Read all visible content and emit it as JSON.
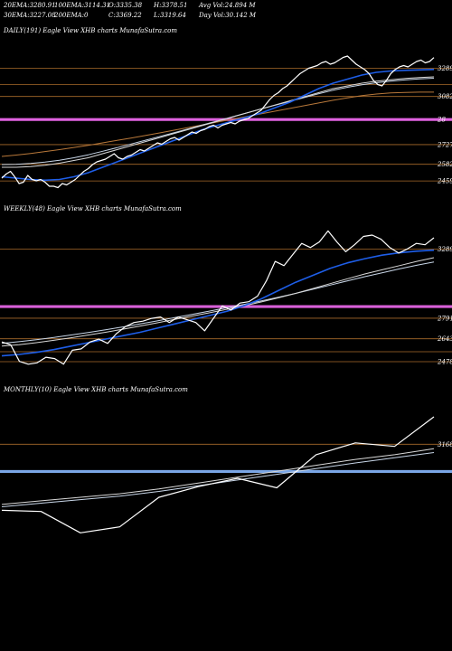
{
  "header": {
    "row1": [
      {
        "label": "20EMA:",
        "value": "3280.91"
      },
      {
        "label": "100EMA:",
        "value": "3114.31"
      },
      {
        "label": "O:",
        "value": "3335.38"
      },
      {
        "label": "H:",
        "value": "3378.51"
      },
      {
        "label": "Avg Vol:",
        "value": "24.894  M"
      }
    ],
    "row2": [
      {
        "label": "30EMA:",
        "value": "3227.08"
      },
      {
        "label": "200EMA:",
        "value": "0"
      },
      {
        "label": "C:",
        "value": "3369.22"
      },
      {
        "label": "L:",
        "value": "3319.64"
      },
      {
        "label": "Day Vol:",
        "value": "30.142  M"
      }
    ]
  },
  "colors": {
    "background": "#000000",
    "price": "#ffffff",
    "ema_fast": "#1e5ee8",
    "ema_slow": "#d8d8d8",
    "ema_alt": "#c8d6e8",
    "long_ma": "#b8783a",
    "level_line": "#a86a2a",
    "daily_band": "#e062e0",
    "weekly_band": "#d860d8",
    "monthly_band": "#7aa6e6"
  },
  "chart_data": [
    {
      "type": "line",
      "title": "DAILY(191) Eagle  View  XHB charts MunafaSutra.com",
      "ylim": [
        2380,
        3500
      ],
      "levels": [
        3289,
        3082,
        2727,
        2582,
        2459
      ],
      "level_labels": [
        "3289",
        "3082",
        "2727",
        "2582",
        "2459"
      ],
      "band": {
        "value": 2912,
        "label": "28"
      },
      "extra_levels": [
        3170
      ],
      "series": [
        {
          "key": "price",
          "color_key": "price",
          "width": 1.2,
          "values": [
            2480,
            2510,
            2530,
            2490,
            2440,
            2450,
            2500,
            2470,
            2460,
            2470,
            2450,
            2420,
            2420,
            2410,
            2440,
            2430,
            2450,
            2470,
            2500,
            2530,
            2550,
            2580,
            2600,
            2610,
            2620,
            2640,
            2660,
            2630,
            2620,
            2640,
            2650,
            2670,
            2690,
            2680,
            2700,
            2720,
            2740,
            2730,
            2750,
            2770,
            2780,
            2760,
            2780,
            2800,
            2820,
            2810,
            2830,
            2840,
            2860,
            2870,
            2850,
            2870,
            2880,
            2890,
            2880,
            2900,
            2910,
            2920,
            2940,
            2960,
            2980,
            3020,
            3060,
            3090,
            3110,
            3140,
            3160,
            3190,
            3220,
            3250,
            3270,
            3290,
            3300,
            3310,
            3330,
            3340,
            3320,
            3330,
            3350,
            3370,
            3380,
            3350,
            3320,
            3300,
            3280,
            3250,
            3200,
            3170,
            3160,
            3200,
            3250,
            3280,
            3300,
            3310,
            3300,
            3320,
            3340,
            3350,
            3330,
            3340,
            3369
          ]
        },
        {
          "key": "ema_fast",
          "color_key": "ema_fast",
          "width": 1.6,
          "values": [
            2490,
            2480,
            2470,
            2465,
            2470,
            2490,
            2520,
            2560,
            2600,
            2640,
            2680,
            2720,
            2760,
            2800,
            2840,
            2870,
            2900,
            2930,
            2960,
            3000,
            3040,
            3090,
            3140,
            3180,
            3210,
            3240,
            3260,
            3270,
            3275,
            3278,
            3281
          ]
        },
        {
          "key": "ema_slow",
          "color_key": "ema_slow",
          "width": 1.0,
          "values": [
            2560,
            2560,
            2565,
            2575,
            2590,
            2610,
            2630,
            2660,
            2690,
            2720,
            2750,
            2780,
            2810,
            2840,
            2870,
            2900,
            2930,
            2960,
            2990,
            3020,
            3050,
            3080,
            3110,
            3140,
            3160,
            3180,
            3195,
            3205,
            3215,
            3222,
            3227
          ]
        },
        {
          "key": "ema_alt",
          "color_key": "ema_alt",
          "width": 1.0,
          "values": [
            2580,
            2582,
            2588,
            2598,
            2612,
            2630,
            2652,
            2678,
            2705,
            2732,
            2760,
            2788,
            2816,
            2845,
            2874,
            2903,
            2932,
            2961,
            2990,
            3018,
            3046,
            3074,
            3102,
            3128,
            3150,
            3168,
            3183,
            3195,
            3204,
            3211,
            3217
          ]
        },
        {
          "key": "long_ma",
          "color_key": "long_ma",
          "width": 1.0,
          "values": [
            2640,
            2650,
            2662,
            2676,
            2690,
            2706,
            2722,
            2740,
            2758,
            2776,
            2795,
            2814,
            2834,
            2854,
            2874,
            2894,
            2914,
            2934,
            2954,
            2974,
            2994,
            3014,
            3034,
            3054,
            3072,
            3088,
            3100,
            3108,
            3112,
            3114,
            3114
          ]
        }
      ]
    },
    {
      "type": "line",
      "title": "WEEKLY(48) Eagle  View  XHB charts MunafaSutra.com",
      "ylim": [
        2400,
        3520
      ],
      "levels": [
        3289,
        2791,
        2643,
        2478
      ],
      "level_labels": [
        "3289",
        "2791",
        "2643",
        "2478"
      ],
      "band": {
        "value": 2875,
        "label": ""
      },
      "extra_levels": [
        2550
      ],
      "series": [
        {
          "key": "price",
          "color_key": "price",
          "width": 1.2,
          "values": [
            2620,
            2600,
            2480,
            2460,
            2470,
            2510,
            2500,
            2460,
            2560,
            2570,
            2620,
            2640,
            2610,
            2680,
            2730,
            2760,
            2770,
            2790,
            2800,
            2760,
            2800,
            2780,
            2760,
            2700,
            2790,
            2880,
            2850,
            2900,
            2910,
            2950,
            3060,
            3200,
            3170,
            3250,
            3330,
            3300,
            3340,
            3420,
            3340,
            3270,
            3320,
            3380,
            3390,
            3360,
            3300,
            3260,
            3290,
            3330,
            3320,
            3370
          ]
        },
        {
          "key": "ema_fast",
          "color_key": "ema_fast",
          "width": 1.6,
          "values": [
            2520,
            2530,
            2545,
            2565,
            2590,
            2615,
            2640,
            2665,
            2690,
            2720,
            2750,
            2780,
            2810,
            2840,
            2880,
            2930,
            2990,
            3050,
            3100,
            3150,
            3190,
            3220,
            3245,
            3262,
            3274,
            3281
          ]
        },
        {
          "key": "ema_slow",
          "color_key": "ema_slow",
          "width": 1.0,
          "values": [
            2590,
            2600,
            2615,
            2632,
            2650,
            2670,
            2690,
            2712,
            2735,
            2758,
            2782,
            2806,
            2830,
            2855,
            2880,
            2908,
            2938,
            2970,
            3005,
            3040,
            3075,
            3110,
            3140,
            3170,
            3200,
            3227
          ]
        },
        {
          "key": "ema_alt",
          "color_key": "ema_alt",
          "width": 1.0,
          "values": [
            2610,
            2622,
            2636,
            2652,
            2670,
            2688,
            2708,
            2728,
            2750,
            2772,
            2795,
            2818,
            2842,
            2866,
            2890,
            2915,
            2942,
            2970,
            3000,
            3030,
            3060,
            3090,
            3118,
            3146,
            3172,
            3196
          ]
        }
      ]
    },
    {
      "type": "line",
      "title": "MONTHLY(10) Eagle  View  XHB charts MunafaSutra.com",
      "ylim": [
        2300,
        3560
      ],
      "levels": [
        3168
      ],
      "level_labels": [
        "3168"
      ],
      "band": {
        "value": 2938,
        "label": ""
      },
      "extra_levels": [],
      "series": [
        {
          "key": "price",
          "color_key": "price",
          "width": 1.2,
          "values": [
            2610,
            2600,
            2420,
            2470,
            2720,
            2810,
            2880,
            2800,
            3080,
            3180,
            3150,
            3400
          ]
        },
        {
          "key": "ema_slow",
          "color_key": "ema_slow",
          "width": 1.0,
          "values": [
            2660,
            2690,
            2720,
            2750,
            2790,
            2840,
            2890,
            2940,
            2990,
            3040,
            3080,
            3130
          ]
        },
        {
          "key": "ema_alt",
          "color_key": "ema_alt",
          "width": 1.0,
          "values": [
            2640,
            2670,
            2700,
            2730,
            2770,
            2818,
            2866,
            2914,
            2962,
            3010,
            3054,
            3098
          ]
        }
      ]
    }
  ]
}
